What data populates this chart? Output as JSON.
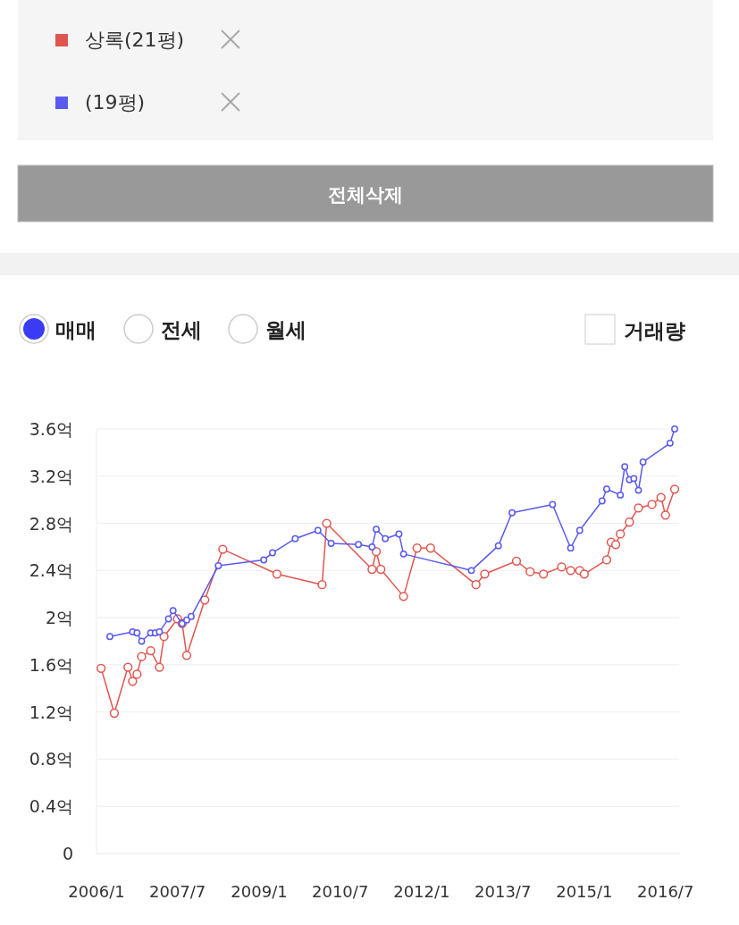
{
  "chart_data": {
    "type": "line",
    "legend": "top",
    "grid": "y",
    "marker": "circle",
    "line_style": "solid",
    "annotations": [
      "전체삭제",
      "매매",
      "전세",
      "월세",
      "거래량"
    ],
    "xlim": [
      "2006-01",
      "2016-10"
    ],
    "xticks": [
      {
        "value": "2006-01",
        "label": "2006/1"
      },
      {
        "value": "2007-07",
        "label": "2007/7"
      },
      {
        "value": "2009-01",
        "label": "2009/1"
      },
      {
        "value": "2010-07",
        "label": "2010/7"
      },
      {
        "value": "2012-01",
        "label": "2012/1"
      },
      {
        "value": "2013-07",
        "label": "2013/7"
      },
      {
        "value": "2015-01",
        "label": "2015/1"
      },
      {
        "value": "2016-07",
        "label": "2016/7"
      }
    ],
    "ylim": [
      0,
      3.6
    ],
    "yticks": [
      0,
      {
        "value": 0.4,
        "label": "0.4억"
      },
      {
        "value": 0.8,
        "label": "0.8억"
      },
      {
        "value": 1.2,
        "label": "1.2억"
      },
      {
        "value": 1.6,
        "label": "1.6억"
      },
      {
        "value": 2,
        "label": "2억"
      },
      {
        "value": 2.4,
        "label": "2.4억"
      },
      {
        "value": 2.8,
        "label": "2.8억"
      },
      {
        "value": 3.2,
        "label": "3.2억"
      },
      {
        "value": 3.6,
        "label": "3.6억"
      }
    ],
    "series": [
      {
        "name": "상록(21평)",
        "color": "#e0564f",
        "x": [
          "2006-02",
          "2006-05",
          "2006-08",
          "2006-09",
          "2006-10",
          "2006-11",
          "2007-01",
          "2007-03",
          "2007-04",
          "2007-07",
          "2007-08",
          "2007-09",
          "2008-01",
          "2008-05",
          "2009-05",
          "2010-03",
          "2010-04",
          "2011-02",
          "2011-03",
          "2011-04",
          "2011-09",
          "2011-12",
          "2012-03",
          "2013-01",
          "2013-03",
          "2013-10",
          "2014-01",
          "2014-04",
          "2014-08",
          "2014-10",
          "2014-12",
          "2015-01",
          "2015-06",
          "2015-07",
          "2015-08",
          "2015-09",
          "2015-11",
          "2016-01",
          "2016-04",
          "2016-06",
          "2016-07",
          "2016-09"
        ],
        "values": [
          1.57,
          1.19,
          1.58,
          1.46,
          1.52,
          1.67,
          1.72,
          1.58,
          1.84,
          1.99,
          1.95,
          1.68,
          2.15,
          2.58,
          2.37,
          2.28,
          2.8,
          2.41,
          2.56,
          2.41,
          2.18,
          2.59,
          2.59,
          2.28,
          2.37,
          2.48,
          2.39,
          2.37,
          2.43,
          2.4,
          2.4,
          2.37,
          2.49,
          2.64,
          2.62,
          2.71,
          2.81,
          2.93,
          2.96,
          3.02,
          2.87,
          3.09
        ]
      },
      {
        "name": "(19평)",
        "color": "#5a5af0",
        "x": [
          "2006-04",
          "2006-09",
          "2006-10",
          "2006-11",
          "2007-01",
          "2007-02",
          "2007-03",
          "2007-05",
          "2007-06",
          "2007-08",
          "2007-09",
          "2007-10",
          "2008-04",
          "2009-02",
          "2009-04",
          "2009-09",
          "2010-02",
          "2010-05",
          "2010-11",
          "2011-02",
          "2011-03",
          "2011-05",
          "2011-08",
          "2011-09",
          "2012-12",
          "2013-06",
          "2013-09",
          "2014-06",
          "2014-10",
          "2014-12",
          "2015-05",
          "2015-06",
          "2015-09",
          "2015-10",
          "2015-11",
          "2015-12",
          "2016-01",
          "2016-02",
          "2016-08",
          "2016-09"
        ],
        "values": [
          1.84,
          1.88,
          1.87,
          1.8,
          1.87,
          1.87,
          1.88,
          1.99,
          2.06,
          1.95,
          1.98,
          2.01,
          2.44,
          2.49,
          2.55,
          2.67,
          2.74,
          2.63,
          2.62,
          2.6,
          2.75,
          2.67,
          2.71,
          2.54,
          2.4,
          2.61,
          2.89,
          2.96,
          2.59,
          2.74,
          2.99,
          3.09,
          3.04,
          3.28,
          3.17,
          3.18,
          3.08,
          3.32,
          3.48,
          3.6
        ]
      }
    ]
  }
}
